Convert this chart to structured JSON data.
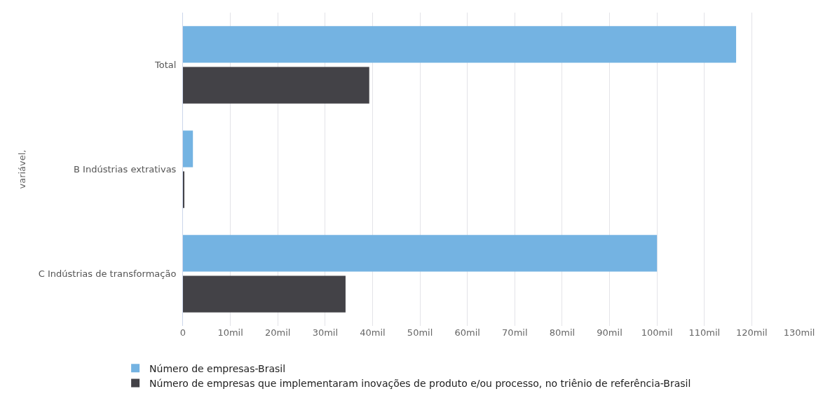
{
  "chart_data": {
    "type": "bar",
    "orientation": "horizontal",
    "ylabel": "variável,",
    "categories": [
      "Total",
      "B Indústrias extrativas",
      "C Indústrias de transformação"
    ],
    "series": [
      {
        "name": "Número de empresas-Brasil",
        "color": "#74b3e2",
        "values": [
          116.7,
          2.1,
          100
        ]
      },
      {
        "name": "Número de empresas que implementaram inovações de produto e/ou processo, no triênio de referência-Brasil",
        "color": "#434247",
        "values": [
          39.3,
          0.2,
          34.3
        ]
      }
    ],
    "xlim": [
      0,
      130
    ],
    "xticks": [
      0,
      {
        "value": 10,
        "label": "10mil"
      },
      {
        "value": 20,
        "label": "20mil"
      },
      {
        "value": 30,
        "label": "30mil"
      },
      {
        "value": 40,
        "label": "40mil"
      },
      {
        "value": 50,
        "label": "50mil"
      },
      {
        "value": 60,
        "label": "60mil"
      },
      {
        "value": 70,
        "label": "70mil"
      },
      {
        "value": 80,
        "label": "80mil"
      },
      {
        "value": 90,
        "label": "90mil"
      },
      {
        "value": 100,
        "label": "100mil"
      },
      {
        "value": 110,
        "label": "110mil"
      },
      {
        "value": 120,
        "label": "120mil"
      },
      {
        "value": 130,
        "label": "130mil"
      }
    ],
    "grid": "x",
    "legend": "bottom left"
  }
}
